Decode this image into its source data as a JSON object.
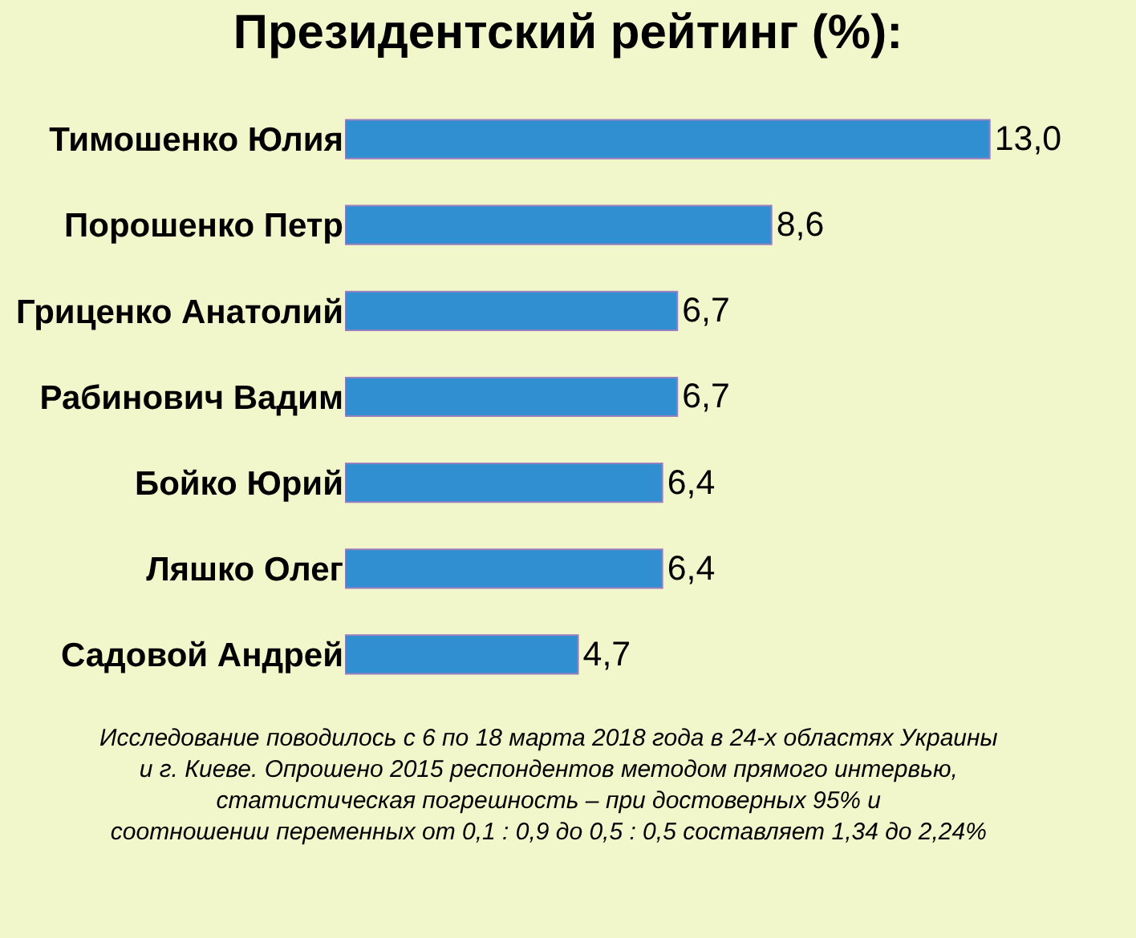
{
  "chart_data": {
    "type": "bar",
    "orientation": "horizontal",
    "title": "Президентский рейтинг (%):",
    "categories": [
      "Тимошенко Юлия",
      "Порошенко Петр",
      "Гриценко Анатолий",
      "Рабинович Вадим",
      "Бойко Юрий",
      "Ляшко Олег",
      "Садовой Андрей"
    ],
    "values": [
      13.0,
      8.6,
      6.7,
      6.7,
      6.4,
      6.4,
      4.7
    ],
    "value_labels": [
      "13,0",
      "8,6",
      "6,7",
      "6,7",
      "6,4",
      "6,4",
      "4,7"
    ],
    "color": "#2f8fd0",
    "annotations": [
      "Исследование поводилось с 6 по 18 марта 2018 года в 24-х областях Украины\nи г. Киеве. Опрошено 2015 респондентов методом прямого интервью,\nстатистическая погрешность – при достоверных 95% и\nсоотношении переменных от 0,1 : 0,9 до 0,5 : 0,5 составляет 1,34 до 2,24%"
    ]
  }
}
